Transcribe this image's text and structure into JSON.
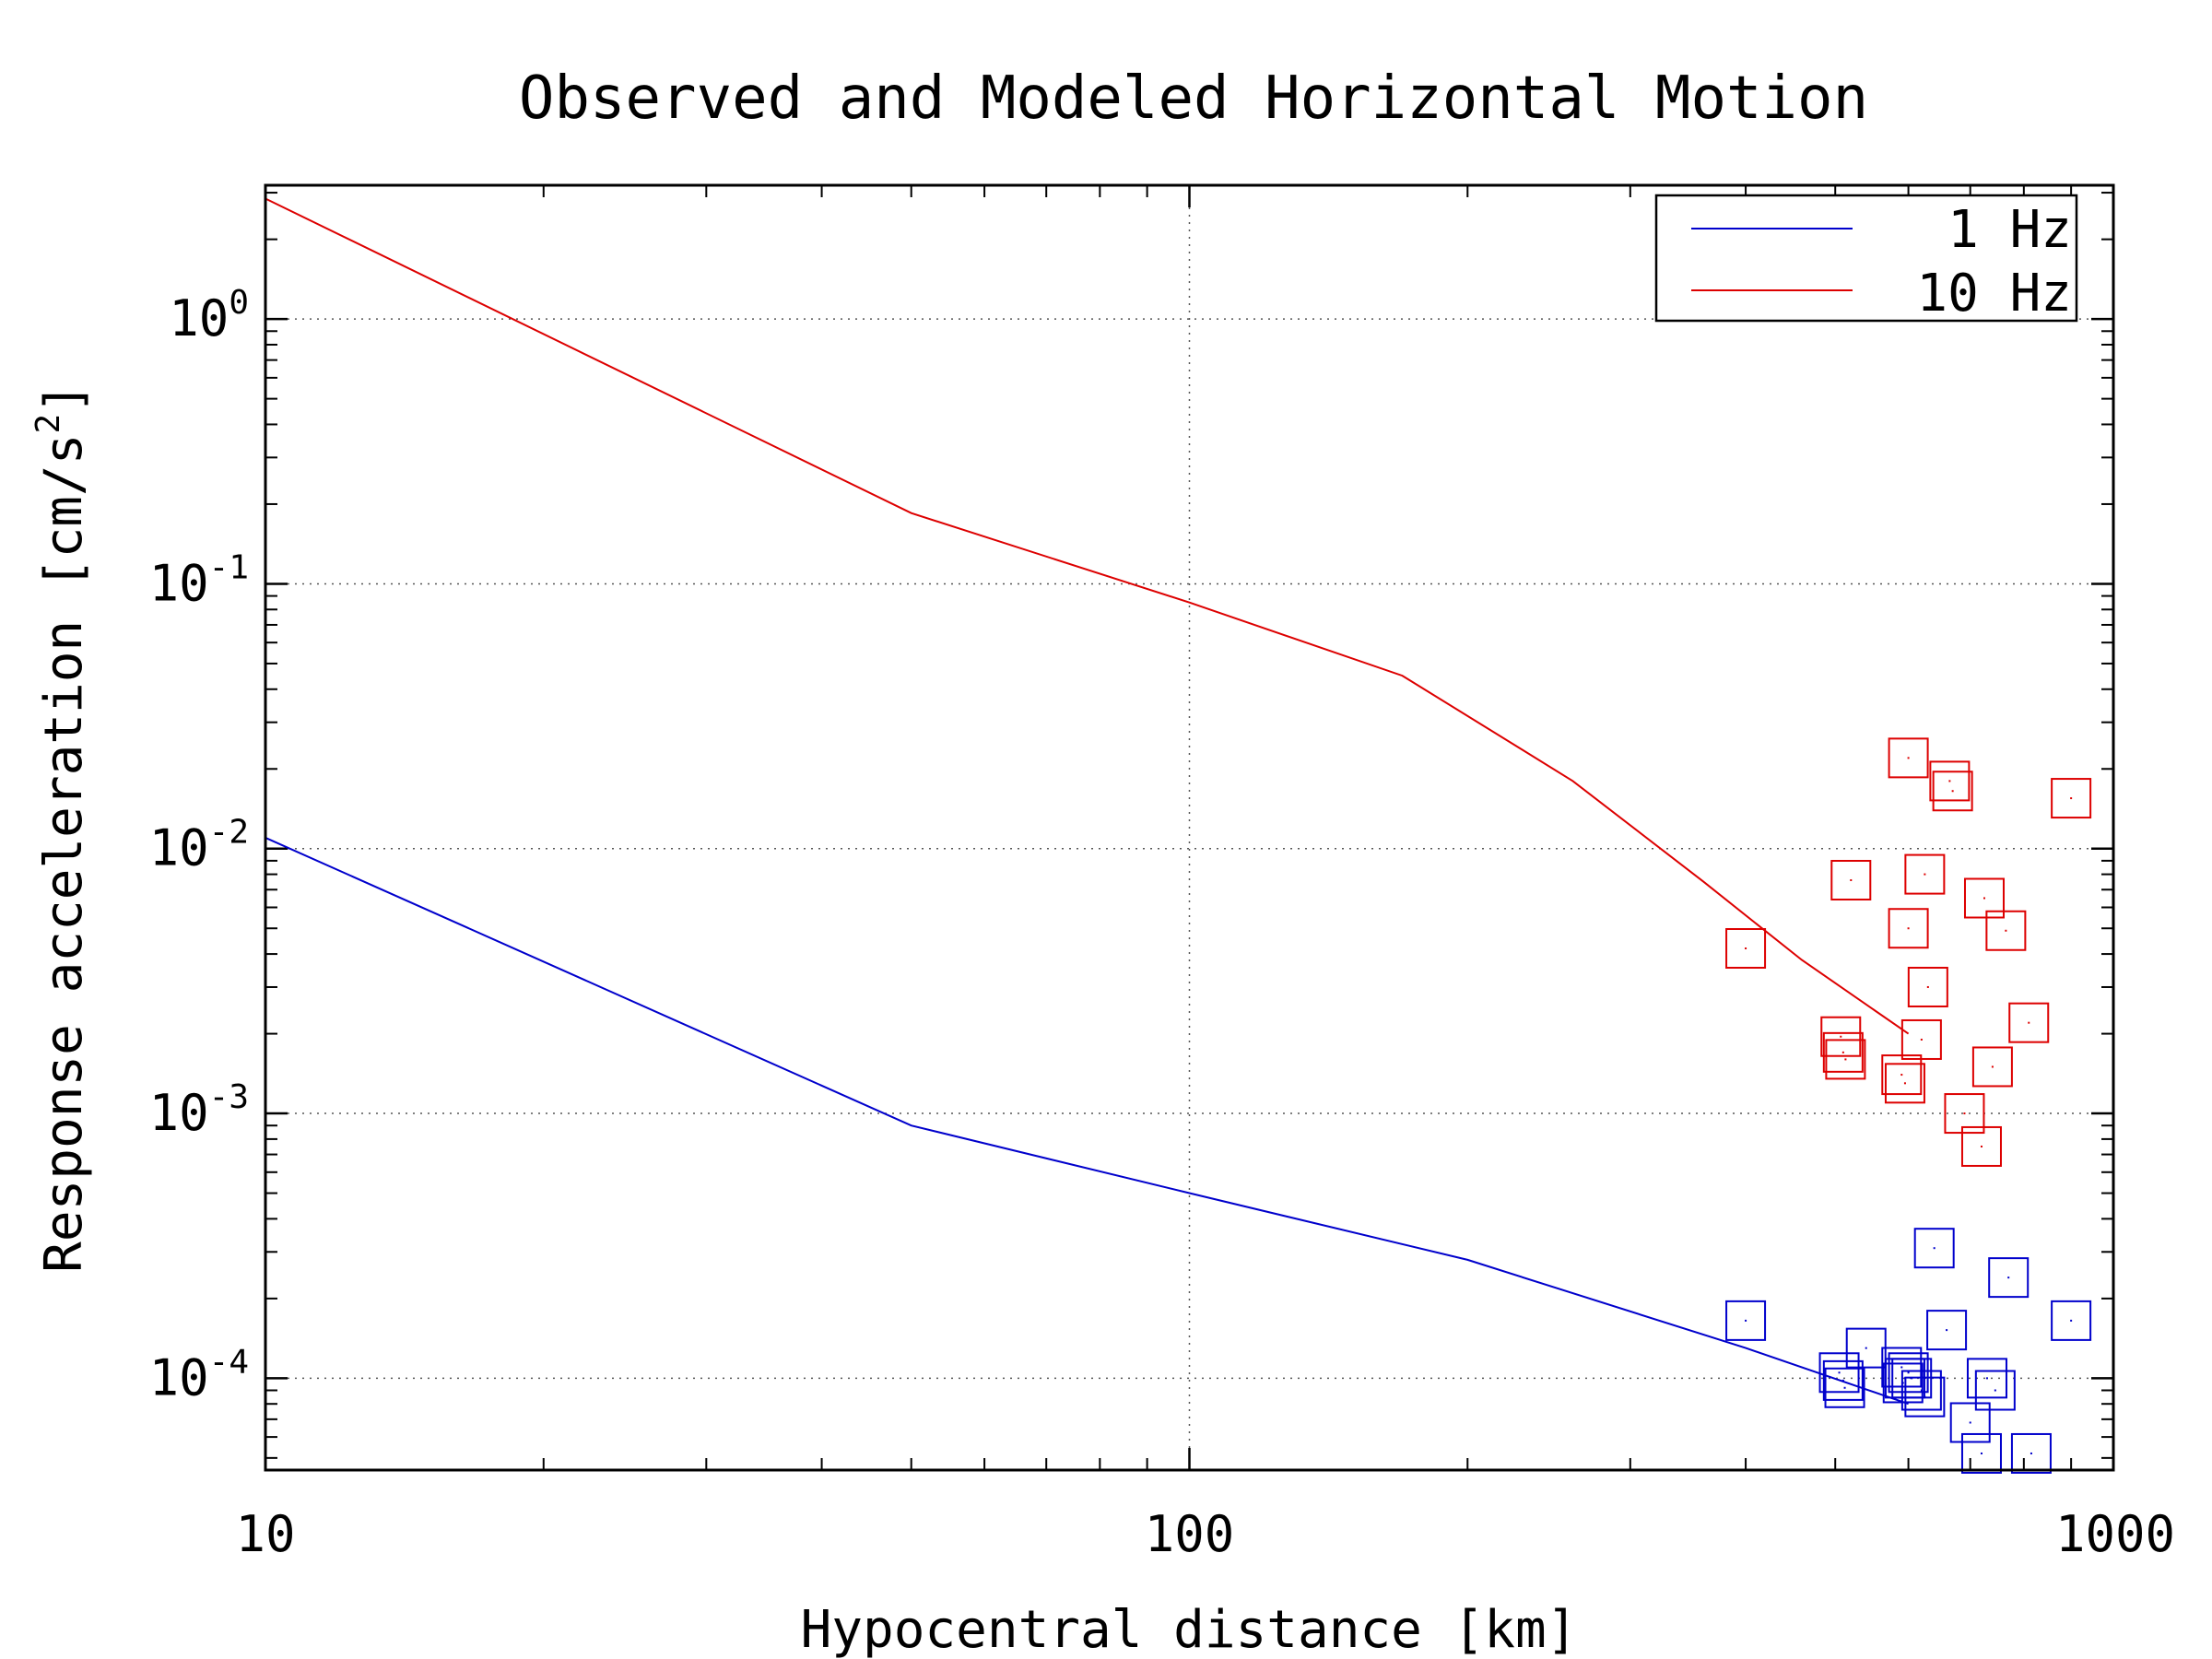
{
  "chart_data": {
    "type": "scatter",
    "title": "Observed and Modeled Horizontal Motion",
    "xlabel": "Hypocentral distance [km]",
    "ylabel": "Response acceleration [cm/s²]",
    "ylabel_parts": {
      "base": "Response acceleration [cm/s",
      "sup": "2",
      "end": "]"
    },
    "x_scale": "log",
    "y_scale": "log",
    "xlim": [
      10,
      1000
    ],
    "ylim": [
      4.5e-05,
      3.2
    ],
    "xticks": [
      {
        "value": 10,
        "label": "10"
      },
      {
        "value": 100,
        "label": "100"
      },
      {
        "value": 1000,
        "label": "1000"
      }
    ],
    "yticks": [
      {
        "value": 0.0001,
        "base": "10",
        "exp": "-4"
      },
      {
        "value": 0.001,
        "base": "10",
        "exp": "-3"
      },
      {
        "value": 0.01,
        "base": "10",
        "exp": "-2"
      },
      {
        "value": 0.1,
        "base": "10",
        "exp": "-1"
      },
      {
        "value": 1,
        "base": "10",
        "exp": "0"
      }
    ],
    "grid": "dotted, major decades",
    "legend_position": "top-right",
    "series": [
      {
        "name": "1 Hz",
        "color": "#0000cc",
        "line": [
          [
            10,
            0.011
          ],
          [
            50,
            0.0009
          ],
          [
            100,
            0.0005
          ],
          [
            200,
            0.00028
          ],
          [
            400,
            0.00013
          ],
          [
            600,
            8e-05
          ]
        ],
        "points": [
          [
            400,
            0.000165
          ],
          [
            505,
            0.000105
          ],
          [
            510,
            9.8e-05
          ],
          [
            512,
            9.2e-05
          ],
          [
            540,
            0.00013
          ],
          [
            590,
            0.00011
          ],
          [
            595,
            0.0001
          ],
          [
            600,
            0.000105
          ],
          [
            592,
            9.6e-05
          ],
          [
            605,
            0.0001
          ],
          [
            620,
            9e-05
          ],
          [
            625,
            8.5e-05
          ],
          [
            640,
            0.00031
          ],
          [
            660,
            0.000152
          ],
          [
            700,
            6.8e-05
          ],
          [
            720,
            5.2e-05
          ],
          [
            730,
            0.0001
          ],
          [
            745,
            9e-05
          ],
          [
            770,
            0.00024
          ],
          [
            815,
            5.2e-05
          ],
          [
            900,
            0.000165
          ]
        ]
      },
      {
        "name": "10 Hz",
        "color": "#dd0000",
        "line": [
          [
            10,
            2.85
          ],
          [
            50,
            0.185
          ],
          [
            100,
            0.085
          ],
          [
            170,
            0.045
          ],
          [
            260,
            0.018
          ],
          [
            360,
            0.0075
          ],
          [
            460,
            0.0038
          ],
          [
            600,
            0.002
          ]
        ],
        "points": [
          [
            400,
            0.0042
          ],
          [
            507,
            0.00195
          ],
          [
            510,
            0.0017
          ],
          [
            513,
            0.0016
          ],
          [
            520,
            0.0076
          ],
          [
            590,
            0.0014
          ],
          [
            595,
            0.0013
          ],
          [
            600,
            0.022
          ],
          [
            600,
            0.005
          ],
          [
            620,
            0.0019
          ],
          [
            625,
            0.008
          ],
          [
            630,
            0.003
          ],
          [
            665,
            0.018
          ],
          [
            670,
            0.0165
          ],
          [
            690,
            0.001
          ],
          [
            720,
            0.00075
          ],
          [
            725,
            0.0065
          ],
          [
            740,
            0.0015
          ],
          [
            765,
            0.0049
          ],
          [
            810,
            0.0022
          ],
          [
            900,
            0.0155
          ]
        ]
      }
    ]
  }
}
